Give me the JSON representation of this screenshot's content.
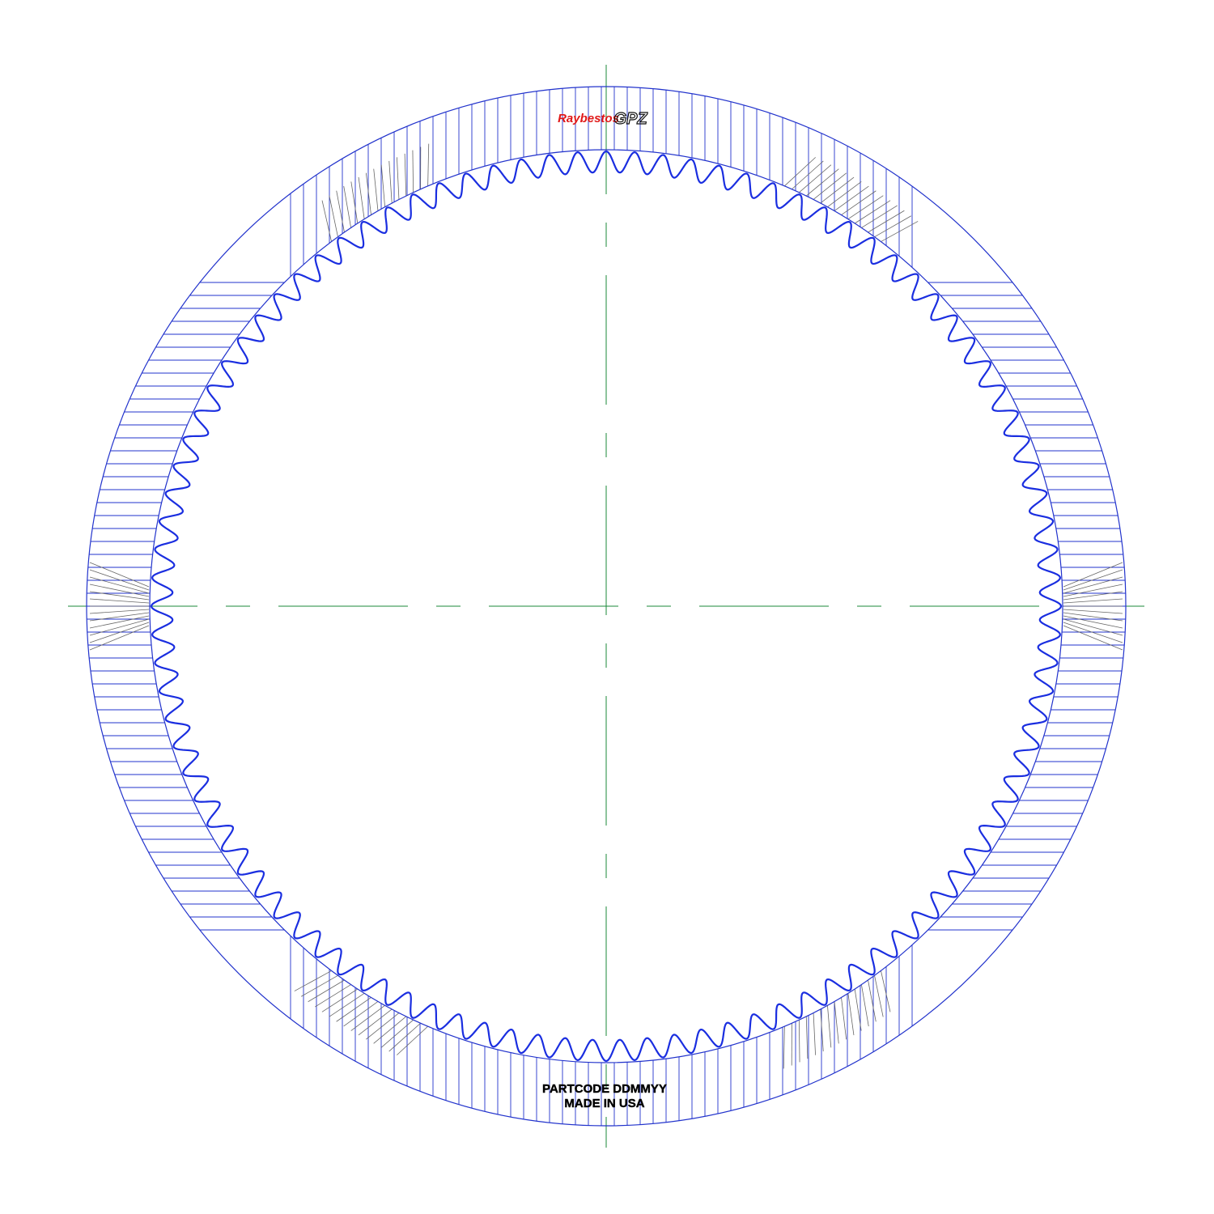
{
  "drawing": {
    "subject": "friction clutch plate with internal spline teeth",
    "colors": {
      "outline": "#2233cc",
      "teeth": "#1a2ee0",
      "centerline": "#1b8a3a",
      "hatch": "#666666",
      "stamp": "#000000",
      "logo_red": "#e01818",
      "logo_dark": "#111111"
    },
    "tooth_count": 100
  },
  "logo": {
    "brand_script": "Raybestos",
    "mark": "GPZ"
  },
  "stamp": {
    "line1": "PARTCODE DDMMYY",
    "line2": "MADE IN USA"
  }
}
